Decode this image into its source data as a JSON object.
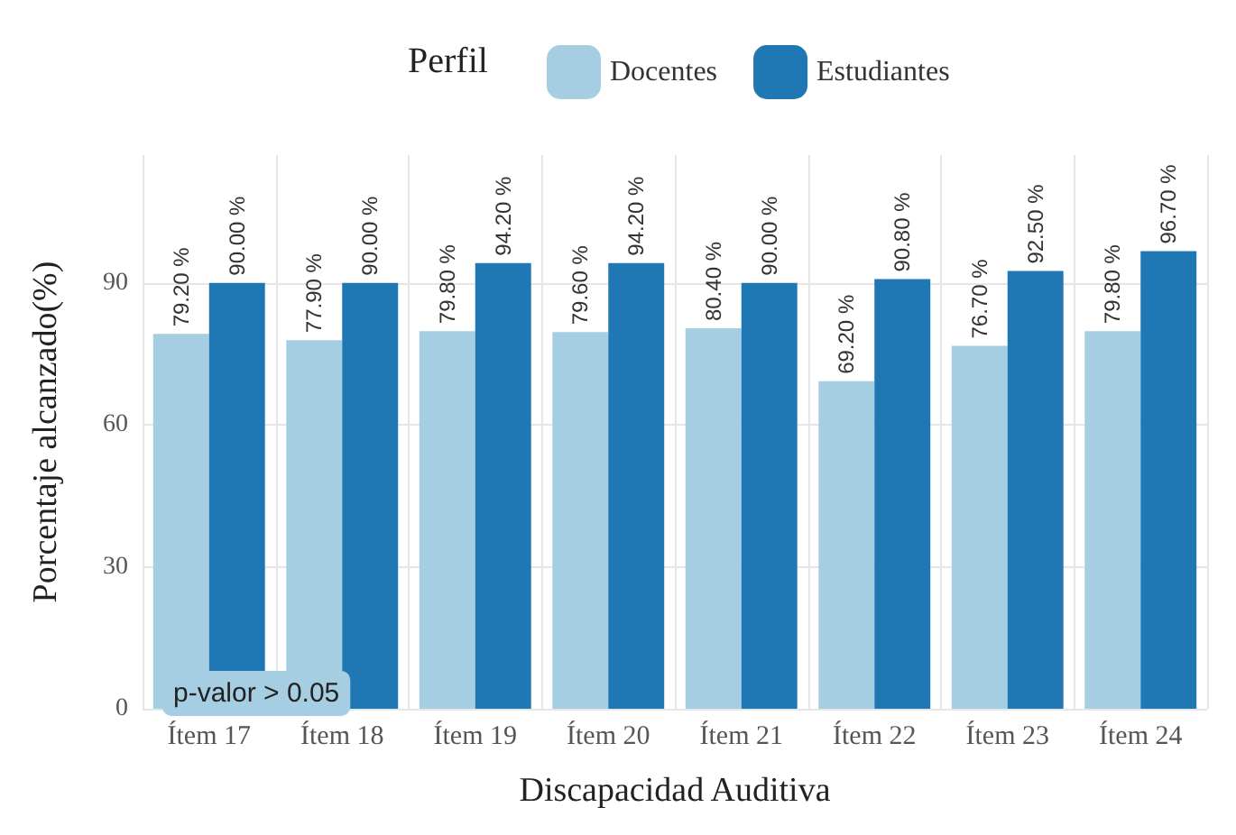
{
  "chart_data": {
    "type": "bar",
    "xlabel": "Discapacidad Auditiva",
    "ylabel": "Porcentaje alcanzado(%)",
    "legend_title": "Perfil",
    "legend": "top",
    "grid": true,
    "categories": [
      "Ítem 17",
      "Ítem 18",
      "Ítem 19",
      "Ítem 20",
      "Ítem 21",
      "Ítem 22",
      "Ítem 23",
      "Ítem 24"
    ],
    "series": [
      {
        "name": "Docentes",
        "color": "#a6cee3",
        "values": [
          79.2,
          77.9,
          79.8,
          79.6,
          80.4,
          69.2,
          76.7,
          79.8
        ],
        "value_labels": [
          "79.20 %",
          "77.90 %",
          "79.80 %",
          "79.60 %",
          "80.40 %",
          "69.20 %",
          "76.70 %",
          "79.80 %"
        ]
      },
      {
        "name": "Estudiantes",
        "color": "#1f78b4",
        "values": [
          90.0,
          90.0,
          94.2,
          94.2,
          90.0,
          90.8,
          92.5,
          96.7
        ],
        "value_labels": [
          "90.00 %",
          "90.00 %",
          "94.20 %",
          "94.20 %",
          "90.00 %",
          "90.80 %",
          "92.50 %",
          "96.70 %"
        ]
      }
    ],
    "ylim": [
      0,
      117
    ],
    "yticks": [
      0,
      30,
      60,
      90
    ],
    "annotations": [
      "p-valor > 0.05"
    ]
  }
}
